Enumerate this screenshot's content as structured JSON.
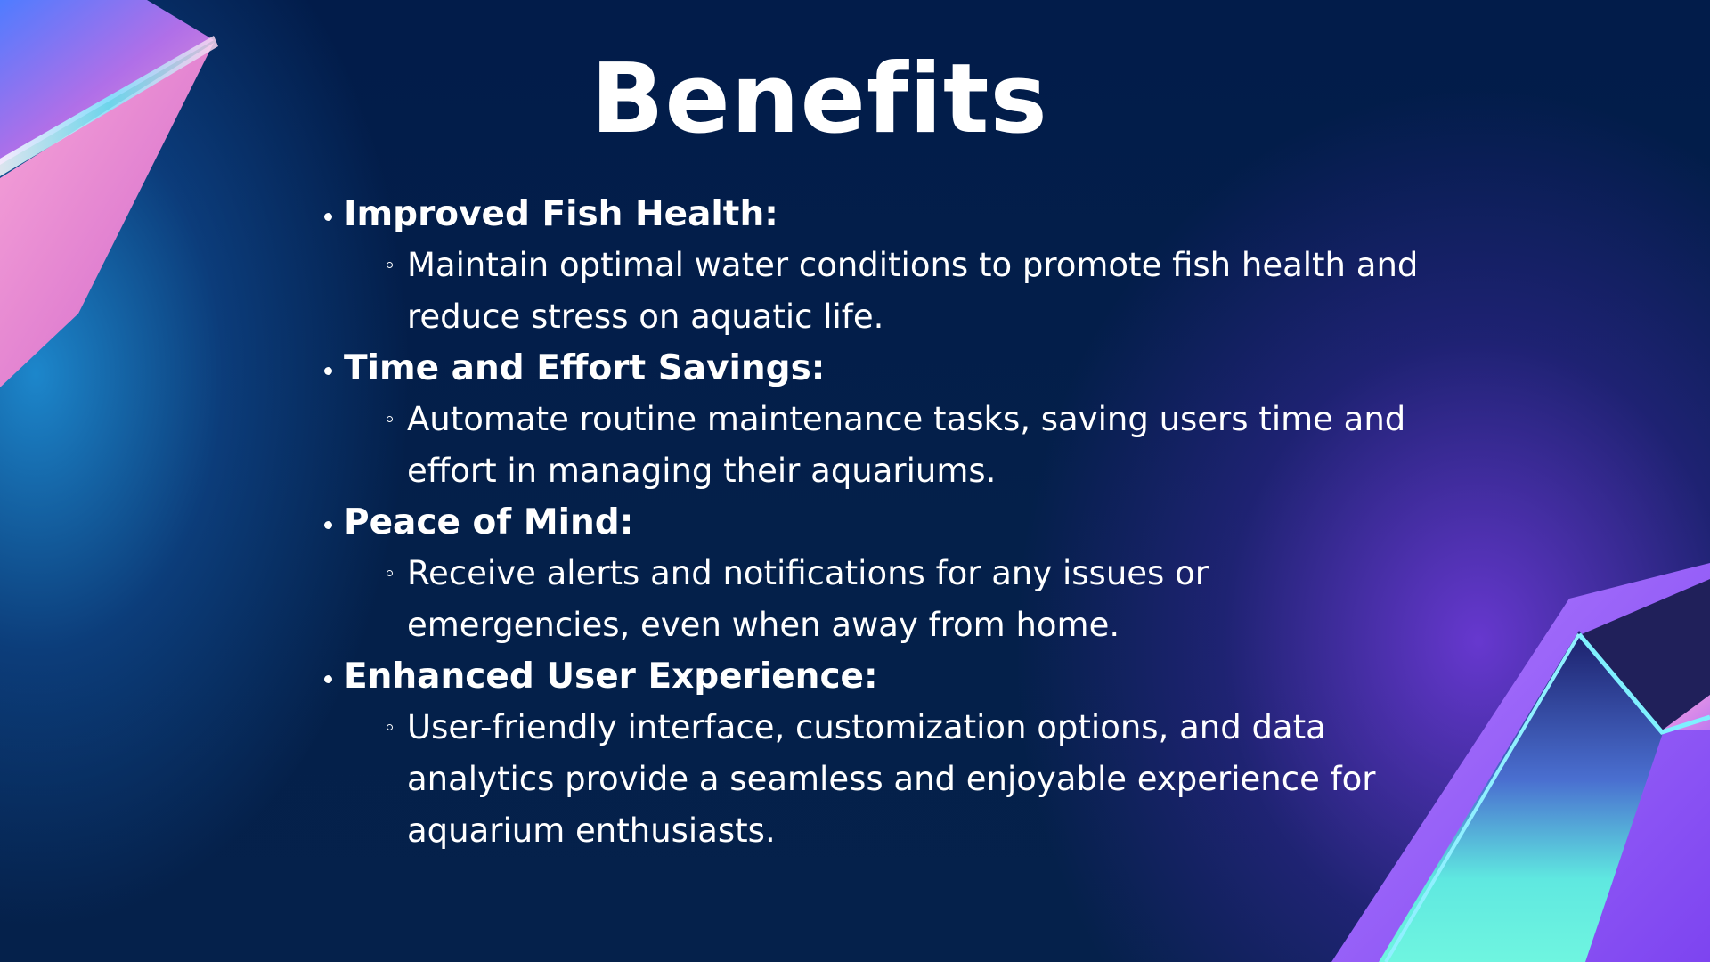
{
  "slide": {
    "title": "Benefits",
    "items": [
      {
        "heading": "Improved Fish Health:",
        "detail": "Maintain optimal water conditions to promote fish health and reduce stress on aquatic life."
      },
      {
        "heading": "Time and Effort Savings:",
        "detail": "Automate routine maintenance tasks, saving users time and effort in managing their aquariums."
      },
      {
        "heading": "Peace of Mind:",
        "detail": "Receive alerts and notifications for any issues or emergencies, even when away from home."
      },
      {
        "heading": "Enhanced User Experience:",
        "detail": "User-friendly interface, customization options, and data analytics provide a seamless and enjoyable experience for aquarium enthusiasts."
      }
    ]
  },
  "colors": {
    "background": "#04204a",
    "text": "#ffffff",
    "accent_purple": "#7a3ff0",
    "accent_cyan": "#3ff0e0",
    "accent_pink": "#f08ac8"
  }
}
